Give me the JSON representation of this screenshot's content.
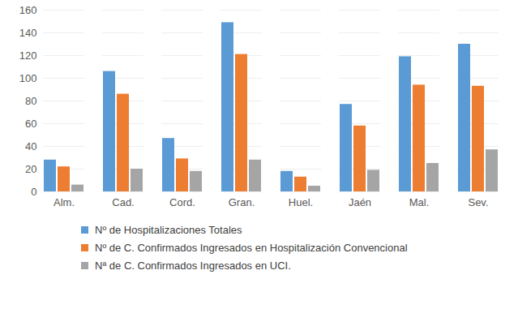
{
  "chart_data": {
    "type": "bar",
    "categories": [
      "Alm.",
      "Cad.",
      "Cord.",
      "Gran.",
      "Huel.",
      "Jaén",
      "Mal.",
      "Sev."
    ],
    "series": [
      {
        "name": "Nº de Hospitalizaciones Totales",
        "color": "#5b9bd5",
        "values": [
          28,
          106,
          47,
          149,
          18,
          77,
          119,
          130
        ]
      },
      {
        "name": "Nº de C. Confirmados Ingresados en Hospitalización Convencional",
        "color": "#ed7d31",
        "values": [
          22,
          86,
          29,
          121,
          13,
          58,
          94,
          93
        ]
      },
      {
        "name": "Nª de C. Confirmados Ingresados en UCI.",
        "color": "#a5a5a5",
        "values": [
          6,
          20,
          18,
          28,
          5,
          19,
          25,
          37
        ]
      }
    ],
    "ylim": [
      0,
      160
    ],
    "yticks": [
      0,
      20,
      40,
      60,
      80,
      100,
      120,
      140,
      160
    ],
    "grid": true,
    "legend": "bottom"
  }
}
